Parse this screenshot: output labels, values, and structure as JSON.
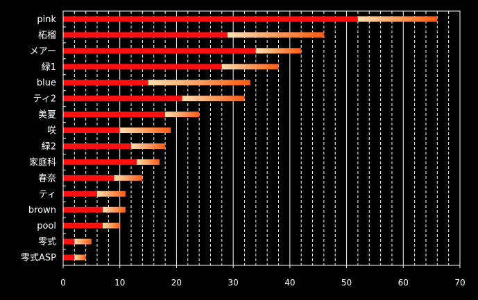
{
  "chart_data": {
    "type": "bar",
    "orientation": "horizontal",
    "stacked": true,
    "categories": [
      "pink",
      "柘榴",
      "メアー",
      "緑1",
      "blue",
      "ティ2",
      "美夏",
      "咲",
      "緑2",
      "家庭科",
      "春奈",
      "ティ",
      "brown",
      "pool",
      "零式",
      "零式ASP"
    ],
    "series": [
      {
        "color": "#ff1010",
        "values": [
          52,
          29,
          34,
          28,
          15,
          21,
          18,
          10,
          12,
          13,
          9,
          6,
          7,
          7,
          2,
          2
        ]
      },
      {
        "color": "#ffd8a0",
        "gradient_to": "#ff6010",
        "values": [
          14,
          17,
          8,
          10,
          18,
          11,
          6,
          9,
          6,
          4,
          5,
          5,
          4,
          3,
          3,
          2
        ]
      }
    ],
    "xlim": [
      0,
      70
    ],
    "xticks": [
      0,
      10,
      20,
      30,
      40,
      50,
      60,
      70
    ],
    "grid": {
      "major": "solid",
      "minor": "dashed",
      "minor_step": 2
    },
    "legend": "none",
    "title": "",
    "xlabel": "",
    "ylabel": ""
  },
  "colors": {
    "background": "#000000",
    "axis": "#ffffff",
    "grid": "#ffffff",
    "text": "#ffffff"
  }
}
